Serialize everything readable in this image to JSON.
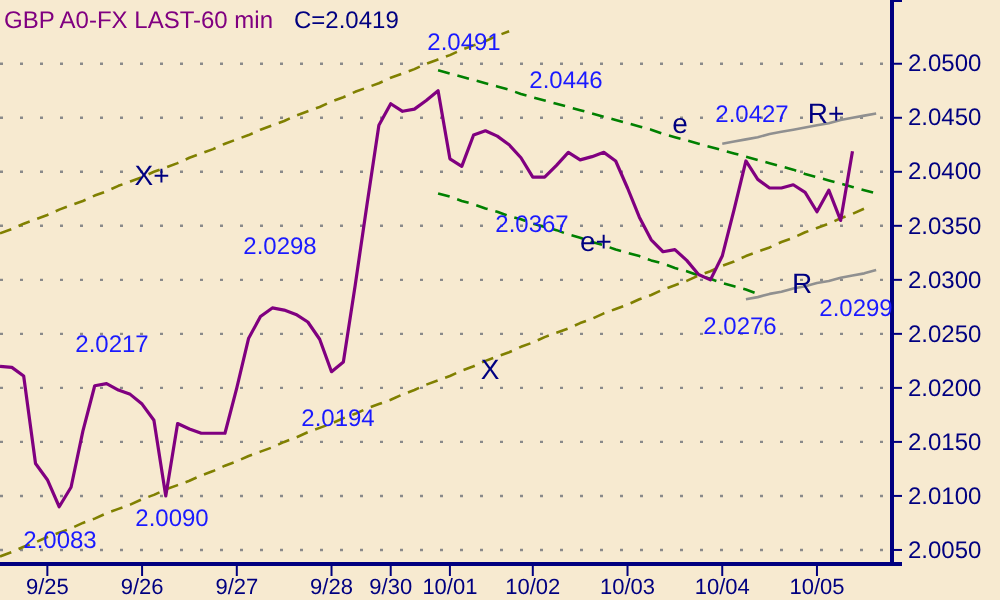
{
  "chart_data": {
    "type": "line",
    "title": "GBP A0-FX LAST-60 min",
    "subtitle": "C=2.0419",
    "categories": [
      null,
      null,
      null,
      null,
      "9/25",
      null,
      null,
      null,
      null,
      null,
      null,
      null,
      "9/26",
      null,
      null,
      null,
      null,
      null,
      null,
      null,
      "9/27",
      null,
      null,
      null,
      null,
      null,
      null,
      null,
      "9/28",
      null,
      null,
      null,
      null,
      "9/30",
      null,
      null,
      null,
      null,
      "10/01",
      null,
      null,
      null,
      null,
      null,
      null,
      "10/02",
      null,
      null,
      null,
      null,
      null,
      null,
      null,
      "10/03",
      null,
      null,
      null,
      null,
      null,
      null,
      null,
      "10/04",
      null,
      null,
      null,
      null,
      null,
      null,
      null,
      "10/05",
      null,
      null,
      null,
      null,
      null
    ],
    "ylim": [
      2.0037,
      2.0559
    ],
    "yticks": [
      {
        "value": 2.005,
        "label": "2.0050"
      },
      {
        "value": 2.01,
        "label": "2.0100"
      },
      {
        "value": 2.015,
        "label": "2.0150"
      },
      {
        "value": 2.02,
        "label": "2.0200"
      },
      {
        "value": 2.025,
        "label": "2.0250"
      },
      {
        "value": 2.03,
        "label": "2.0300"
      },
      {
        "value": 2.035,
        "label": "2.0350"
      },
      {
        "value": 2.04,
        "label": "2.0400"
      },
      {
        "value": 2.045,
        "label": "2.0450"
      },
      {
        "value": 2.05,
        "label": "2.0500"
      }
    ],
    "grid": "y",
    "marker": "none",
    "series": [
      {
        "color": "#800080",
        "line_style": "solid",
        "values": [
          2.022,
          2.0219,
          2.0211,
          2.013,
          2.0115,
          2.009,
          2.0108,
          2.016,
          2.0202,
          2.0204,
          2.0198,
          2.0194,
          2.0185,
          2.017,
          2.01,
          2.0167,
          2.0162,
          2.0158,
          2.0158,
          2.0158,
          2.02,
          2.0246,
          2.0266,
          2.0274,
          2.0272,
          2.0268,
          2.0261,
          2.0245,
          2.0215,
          2.0224,
          2.0295,
          2.037,
          2.0443,
          2.0463,
          2.0456,
          2.0458,
          2.0466,
          2.0475,
          2.0412,
          2.0405,
          2.0434,
          2.0438,
          2.0433,
          2.0425,
          2.0413,
          2.0395,
          2.0395,
          2.0406,
          2.0418,
          2.0411,
          2.0414,
          2.0418,
          2.041,
          2.0385,
          2.0358,
          2.0337,
          2.0326,
          2.0328,
          2.0318,
          2.0305,
          2.03,
          2.0322,
          2.0365,
          2.041,
          2.0393,
          2.0385,
          2.0385,
          2.0388,
          2.0381,
          2.0363,
          2.0383,
          2.0355,
          2.0419,
          null,
          null
        ]
      },
      {
        "color": "#808000",
        "line_style": "dashed",
        "values": [
          2.0044,
          2.0048,
          2.0053,
          2.0057,
          2.0062,
          2.0066,
          2.007,
          2.0075,
          2.0079,
          2.0084,
          2.0088,
          2.0092,
          2.0097,
          2.0101,
          2.0106,
          2.011,
          2.0114,
          2.0119,
          2.0123,
          2.0128,
          2.0132,
          2.0137,
          2.0141,
          2.0145,
          2.015,
          2.0154,
          2.0159,
          2.0163,
          2.0167,
          2.0172,
          2.0176,
          2.0181,
          2.0185,
          2.0189,
          2.0194,
          2.0198,
          2.0203,
          2.0207,
          2.0211,
          2.0216,
          2.022,
          2.0225,
          2.0229,
          2.0233,
          2.0238,
          2.0242,
          2.0247,
          2.0251,
          2.0255,
          2.026,
          2.0264,
          2.0269,
          2.0273,
          2.0277,
          2.0282,
          2.0286,
          2.0291,
          2.0295,
          2.0299,
          2.0304,
          2.0308,
          2.0313,
          2.0317,
          2.0322,
          2.0326,
          2.033,
          2.0335,
          2.0339,
          2.0344,
          2.0348,
          2.0352,
          2.0357,
          2.0361,
          2.0366,
          null
        ]
      },
      {
        "color": "#808000",
        "line_style": "dashed",
        "values": [
          2.0343,
          2.0347,
          2.0352,
          2.0356,
          2.036,
          2.0365,
          2.0369,
          2.0373,
          2.0378,
          2.0382,
          2.0387,
          2.0391,
          2.0395,
          2.04,
          2.0404,
          2.0408,
          2.0413,
          2.0417,
          2.0421,
          2.0426,
          2.043,
          2.0434,
          2.0439,
          2.0443,
          2.0447,
          2.0452,
          2.0456,
          2.046,
          2.0465,
          2.0469,
          2.0474,
          2.0478,
          2.0482,
          2.0487,
          2.0491,
          2.0495,
          2.05,
          2.0504,
          2.0508,
          2.0513,
          2.0517,
          2.0521,
          2.0526,
          2.053,
          null,
          null,
          null,
          null,
          null,
          null,
          null,
          null,
          null,
          null,
          null,
          null,
          null,
          null,
          null,
          null,
          null,
          null,
          null,
          null,
          null,
          null,
          null,
          null,
          null,
          null,
          null,
          null,
          null,
          null,
          null
        ]
      },
      {
        "color": "#008000",
        "line_style": "dashed",
        "values": [
          null,
          null,
          null,
          null,
          null,
          null,
          null,
          null,
          null,
          null,
          null,
          null,
          null,
          null,
          null,
          null,
          null,
          null,
          null,
          null,
          null,
          null,
          null,
          null,
          null,
          null,
          null,
          null,
          null,
          null,
          null,
          null,
          null,
          null,
          null,
          null,
          null,
          2.0494,
          2.0491,
          2.0488,
          2.0485,
          2.0482,
          2.0479,
          2.0476,
          2.0472,
          2.0469,
          2.0466,
          2.0463,
          2.046,
          2.0457,
          2.0454,
          2.0451,
          2.0448,
          2.0445,
          2.0442,
          2.0439,
          2.0435,
          2.0432,
          2.0429,
          2.0426,
          2.0423,
          2.042,
          2.0417,
          2.0414,
          2.0411,
          2.0408,
          2.0405,
          2.0402,
          2.0398,
          2.0395,
          2.0392,
          2.0389,
          2.0386,
          2.0383,
          2.038
        ]
      },
      {
        "color": "#008000",
        "line_style": "dashed",
        "values": [
          null,
          null,
          null,
          null,
          null,
          null,
          null,
          null,
          null,
          null,
          null,
          null,
          null,
          null,
          null,
          null,
          null,
          null,
          null,
          null,
          null,
          null,
          null,
          null,
          null,
          null,
          null,
          null,
          null,
          null,
          null,
          null,
          null,
          null,
          null,
          null,
          null,
          2.038,
          2.0377,
          2.0373,
          2.037,
          2.0366,
          2.0363,
          2.0359,
          2.0356,
          2.0352,
          2.0349,
          2.0346,
          2.0342,
          2.0339,
          2.0335,
          2.0332,
          2.0328,
          2.0325,
          2.0322,
          2.0318,
          2.0315,
          2.0311,
          2.0308,
          2.0304,
          2.0301,
          2.0297,
          2.0294,
          2.0291,
          2.0287,
          null,
          null,
          null,
          null,
          null,
          null,
          null,
          null,
          null,
          null
        ]
      },
      {
        "color": "#909090",
        "line_style": "solid",
        "values": [
          null,
          null,
          null,
          null,
          null,
          null,
          null,
          null,
          null,
          null,
          null,
          null,
          null,
          null,
          null,
          null,
          null,
          null,
          null,
          null,
          null,
          null,
          null,
          null,
          null,
          null,
          null,
          null,
          null,
          null,
          null,
          null,
          null,
          null,
          null,
          null,
          null,
          null,
          null,
          null,
          null,
          null,
          null,
          null,
          null,
          null,
          null,
          null,
          null,
          null,
          null,
          null,
          null,
          null,
          null,
          null,
          null,
          null,
          null,
          null,
          null,
          2.0426,
          2.0428,
          2.043,
          2.0432,
          2.0435,
          2.0437,
          2.0439,
          2.0441,
          2.0443,
          2.0445,
          2.0448,
          2.045,
          2.0452,
          2.0454
        ]
      },
      {
        "color": "#909090",
        "line_style": "solid",
        "values": [
          null,
          null,
          null,
          null,
          null,
          null,
          null,
          null,
          null,
          null,
          null,
          null,
          null,
          null,
          null,
          null,
          null,
          null,
          null,
          null,
          null,
          null,
          null,
          null,
          null,
          null,
          null,
          null,
          null,
          null,
          null,
          null,
          null,
          null,
          null,
          null,
          null,
          null,
          null,
          null,
          null,
          null,
          null,
          null,
          null,
          null,
          null,
          null,
          null,
          null,
          null,
          null,
          null,
          null,
          null,
          null,
          null,
          null,
          null,
          null,
          null,
          null,
          null,
          2.0282,
          2.0284,
          2.0287,
          2.0289,
          2.0292,
          2.0294,
          2.0297,
          2.0299,
          2.0302,
          2.0304,
          2.0306,
          2.0309
        ]
      }
    ],
    "annotations": [
      "2.0491",
      "2.0446",
      "2.0427",
      "2.0367",
      "2.0276",
      "2.0299",
      "2.0298",
      "2.0217",
      "2.0194",
      "2.0090",
      "2.0083",
      "X+",
      "X",
      "e",
      "e+",
      "R+",
      "R"
    ]
  }
}
